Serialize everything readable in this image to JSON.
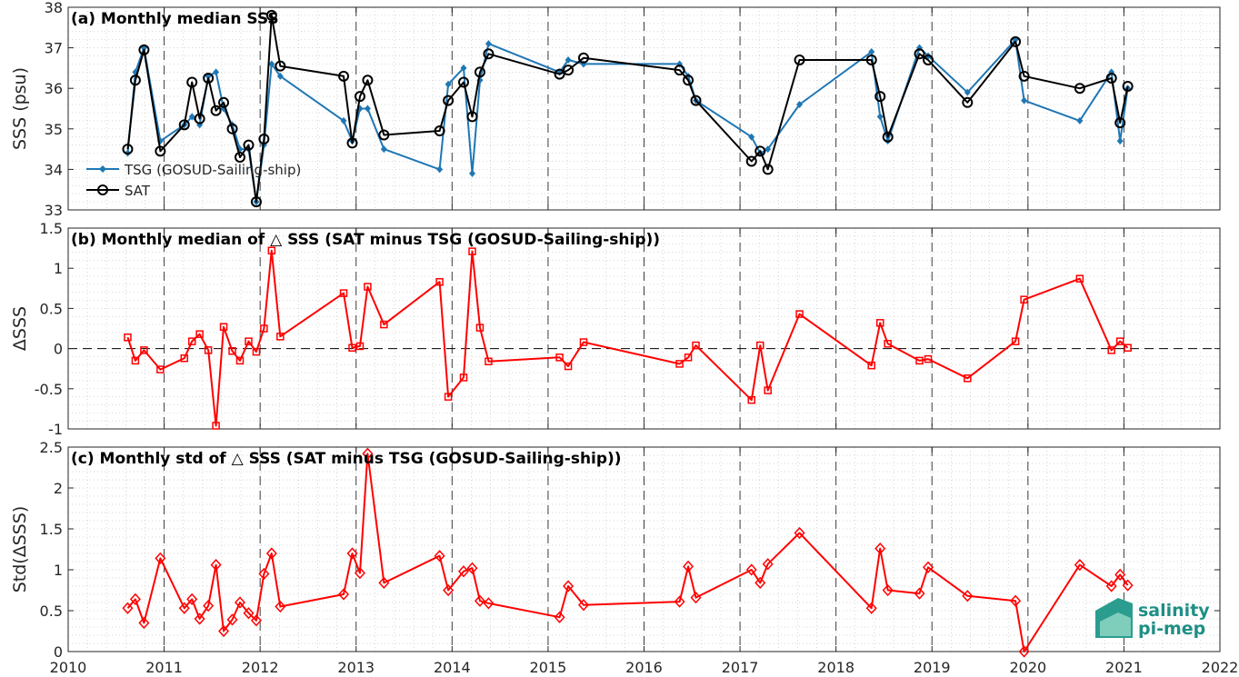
{
  "figure": {
    "x_ticks": [
      "2010",
      "2011",
      "2012",
      "2013",
      "2014",
      "2015",
      "2016",
      "2017",
      "2018",
      "2019",
      "2020",
      "2021",
      "2022"
    ],
    "logo": {
      "line1": "salinity",
      "line2": "pi-mep"
    }
  },
  "colors": {
    "tsg": "#1f77b4",
    "sat": "#000000",
    "delta": "#ff0000"
  },
  "chart_data": [
    {
      "type": "line",
      "title": "(a) Monthly median SSS",
      "ylabel": "SSS (psu)",
      "xlim": [
        2010,
        2022
      ],
      "ylim": [
        33,
        38
      ],
      "yticks": [
        33,
        34,
        35,
        36,
        37,
        38
      ],
      "grid": true,
      "legend_position": "bottom-left",
      "series": [
        {
          "name": "TSG (GOSUD-Sailing-ship)",
          "marker": "diamond",
          "x": [
            2010.62,
            2010.7,
            2010.79,
            2010.96,
            2011.21,
            2011.29,
            2011.37,
            2011.46,
            2011.54,
            2011.62,
            2011.71,
            2011.79,
            2011.88,
            2011.96,
            2012.04,
            2012.12,
            2012.21,
            2012.87,
            2012.96,
            2013.04,
            2013.12,
            2013.29,
            2013.87,
            2013.96,
            2014.12,
            2014.21,
            2014.29,
            2014.38,
            2015.12,
            2015.21,
            2015.37,
            2016.37,
            2016.46,
            2016.54,
            2017.12,
            2017.21,
            2017.29,
            2017.62,
            2018.37,
            2018.46,
            2018.54,
            2018.87,
            2018.96,
            2019.37,
            2019.87,
            2019.96,
            2020.54,
            2020.87,
            2020.96,
            2021.04
          ],
          "y": [
            34.4,
            36.4,
            37.0,
            34.7,
            35.1,
            35.3,
            35.1,
            36.3,
            36.4,
            35.5,
            35.1,
            34.5,
            34.5,
            33.2,
            34.6,
            36.6,
            36.3,
            35.2,
            34.7,
            35.5,
            35.5,
            34.5,
            34.0,
            36.1,
            36.5,
            33.9,
            36.2,
            37.1,
            36.4,
            36.7,
            36.6,
            36.6,
            36.3,
            35.7,
            34.8,
            34.4,
            34.5,
            35.6,
            36.9,
            35.3,
            34.7,
            37.0,
            36.8,
            35.9,
            37.2,
            35.7,
            35.2,
            36.4,
            34.7,
            36.0
          ]
        },
        {
          "name": "SAT",
          "marker": "circle",
          "x": [
            2010.62,
            2010.7,
            2010.79,
            2010.96,
            2011.21,
            2011.29,
            2011.37,
            2011.46,
            2011.54,
            2011.62,
            2011.71,
            2011.79,
            2011.88,
            2011.96,
            2012.04,
            2012.12,
            2012.21,
            2012.87,
            2012.96,
            2013.04,
            2013.12,
            2013.29,
            2013.87,
            2013.96,
            2014.12,
            2014.21,
            2014.29,
            2014.38,
            2015.12,
            2015.21,
            2015.37,
            2016.37,
            2016.46,
            2016.54,
            2017.12,
            2017.21,
            2017.29,
            2017.62,
            2018.37,
            2018.46,
            2018.54,
            2018.87,
            2018.96,
            2019.37,
            2019.87,
            2019.96,
            2020.54,
            2020.87,
            2020.96,
            2021.04
          ],
          "y": [
            34.5,
            36.2,
            36.95,
            34.45,
            35.1,
            36.15,
            35.25,
            36.25,
            35.45,
            35.65,
            35.0,
            34.3,
            34.6,
            33.2,
            34.75,
            37.8,
            36.55,
            36.3,
            34.65,
            35.8,
            36.2,
            34.85,
            34.95,
            35.7,
            36.15,
            35.3,
            36.4,
            36.85,
            36.35,
            36.45,
            36.75,
            36.45,
            36.2,
            35.7,
            34.2,
            34.45,
            34.0,
            36.7,
            36.7,
            35.8,
            34.8,
            36.85,
            36.7,
            35.65,
            37.15,
            36.3,
            36.0,
            36.25,
            35.15,
            36.05
          ]
        }
      ]
    },
    {
      "type": "line",
      "title": "(b) Monthly median of △ SSS (SAT minus TSG (GOSUD-Sailing-ship))",
      "ylabel": "ΔSSS",
      "xlim": [
        2010,
        2022
      ],
      "ylim": [
        -1,
        1.5
      ],
      "yticks": [
        -1,
        -0.5,
        0,
        0.5,
        1,
        1.5
      ],
      "zero_line": true,
      "grid": true,
      "series": [
        {
          "marker": "square",
          "x": [
            2010.62,
            2010.7,
            2010.79,
            2010.96,
            2011.21,
            2011.29,
            2011.37,
            2011.46,
            2011.54,
            2011.62,
            2011.71,
            2011.79,
            2011.88,
            2011.96,
            2012.04,
            2012.12,
            2012.21,
            2012.87,
            2012.96,
            2013.04,
            2013.12,
            2013.29,
            2013.87,
            2013.96,
            2014.12,
            2014.21,
            2014.29,
            2014.38,
            2015.12,
            2015.21,
            2015.37,
            2016.37,
            2016.46,
            2016.54,
            2017.12,
            2017.21,
            2017.29,
            2017.62,
            2018.37,
            2018.46,
            2018.54,
            2018.87,
            2018.96,
            2019.37,
            2019.87,
            2019.96,
            2020.54,
            2020.87,
            2020.96,
            2021.04
          ],
          "y": [
            0.14,
            -0.15,
            -0.02,
            -0.26,
            -0.12,
            0.09,
            0.18,
            -0.02,
            -0.96,
            0.27,
            -0.03,
            -0.15,
            0.09,
            -0.04,
            0.25,
            1.22,
            0.15,
            0.69,
            0.01,
            0.03,
            0.77,
            0.3,
            0.83,
            -0.6,
            -0.36,
            1.21,
            0.26,
            -0.16,
            -0.11,
            -0.22,
            0.08,
            -0.19,
            -0.11,
            0.04,
            -0.64,
            0.04,
            -0.52,
            0.43,
            -0.21,
            0.32,
            0.06,
            -0.15,
            -0.13,
            -0.37,
            0.09,
            0.61,
            0.87,
            -0.02,
            0.09,
            0.01
          ]
        }
      ]
    },
    {
      "type": "line",
      "title": "(c) Monthly std of △ SSS (SAT minus TSG (GOSUD-Sailing-ship))",
      "ylabel": "Std(ΔSSS)",
      "xlim": [
        2010,
        2022
      ],
      "ylim": [
        0,
        2.5
      ],
      "yticks": [
        0,
        0.5,
        1,
        1.5,
        2,
        2.5
      ],
      "grid": true,
      "series": [
        {
          "marker": "diamond",
          "x": [
            2010.62,
            2010.7,
            2010.79,
            2010.96,
            2011.21,
            2011.29,
            2011.37,
            2011.46,
            2011.54,
            2011.62,
            2011.71,
            2011.79,
            2011.88,
            2011.96,
            2012.04,
            2012.12,
            2012.21,
            2012.87,
            2012.96,
            2013.04,
            2013.12,
            2013.29,
            2013.87,
            2013.96,
            2014.12,
            2014.21,
            2014.29,
            2014.38,
            2015.12,
            2015.21,
            2015.37,
            2016.37,
            2016.46,
            2016.54,
            2017.12,
            2017.21,
            2017.29,
            2017.62,
            2018.37,
            2018.46,
            2018.54,
            2018.87,
            2018.96,
            2019.37,
            2019.87,
            2019.96,
            2020.54,
            2020.87,
            2020.96,
            2021.04
          ],
          "y": [
            0.53,
            0.64,
            0.35,
            1.14,
            0.53,
            0.64,
            0.4,
            0.56,
            1.06,
            0.25,
            0.39,
            0.6,
            0.47,
            0.38,
            0.95,
            1.2,
            0.55,
            0.7,
            1.2,
            0.96,
            2.42,
            0.84,
            1.17,
            0.75,
            0.98,
            1.02,
            0.62,
            0.59,
            0.42,
            0.8,
            0.57,
            0.61,
            1.04,
            0.66,
            1.0,
            0.84,
            1.07,
            1.45,
            0.53,
            1.26,
            0.75,
            0.71,
            1.03,
            0.68,
            0.62,
            0.0,
            1.06,
            0.8,
            0.94,
            0.81
          ]
        }
      ]
    }
  ]
}
